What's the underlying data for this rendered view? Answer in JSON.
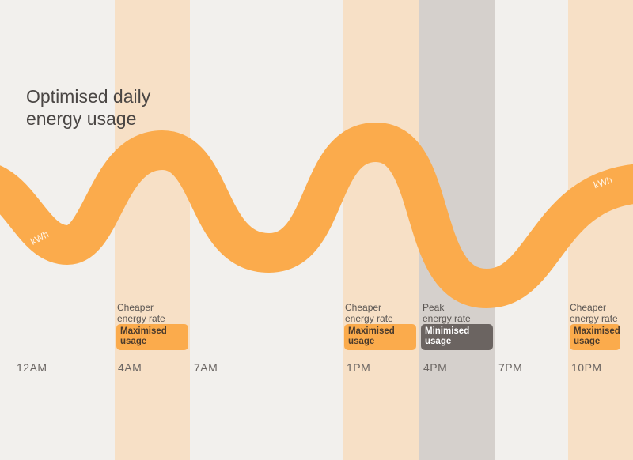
{
  "title_line1": "Optimised daily",
  "title_line2": "energy usage",
  "curve_label": "kWh",
  "times": [
    "12AM",
    "4AM",
    "7AM",
    "1PM",
    "4PM",
    "7PM",
    "10PM"
  ],
  "periods": [
    {
      "label_line1": "Cheaper",
      "label_line2": "energy rate",
      "badge_line1": "Maximised",
      "badge_line2": "usage"
    },
    {
      "label_line1": "Cheaper",
      "label_line2": "energy rate",
      "badge_line1": "Maximised",
      "badge_line2": "usage"
    },
    {
      "label_line1": "Peak",
      "label_line2": "energy rate",
      "badge_line1": "Minimised",
      "badge_line2": "usage"
    },
    {
      "label_line1": "Cheaper",
      "label_line2": "energy rate",
      "badge_line1": "Maximised",
      "badge_line2": "usage"
    }
  ],
  "colors": {
    "background": "#f2f0ed",
    "cheap_band": "#f7e0c6",
    "peak_band": "#d5d0cc",
    "curve": "#fbab4c",
    "cheap_badge": "#fbab4c",
    "peak_badge": "#6b6461"
  }
}
